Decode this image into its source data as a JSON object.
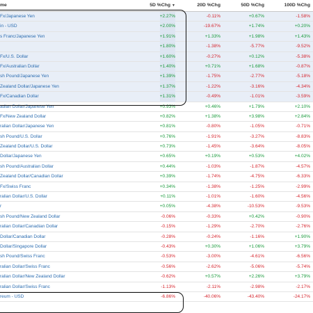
{
  "header": {
    "name": "me",
    "c5": "5D %Chg",
    "c20": "20D %Chg",
    "c50": "50D %Chg",
    "c100": "100D %Chg",
    "sort_icon": "▼"
  },
  "rows": [
    {
      "name": "Fx/Japanese Yen",
      "v5": "+2.27%",
      "v20": "-0.11%",
      "v50": "+0.67%",
      "v100": "-1.58%"
    },
    {
      "name": "in - USD",
      "v5": "+2.00%",
      "v20": "-19.67%",
      "v50": "+1.74%",
      "v100": "+0.20%"
    },
    {
      "name": "s Franc/Japanese Yen",
      "v5": "+1.91%",
      "v20": "+1.33%",
      "v50": "+1.98%",
      "v100": "+1.43%"
    },
    {
      "name": "",
      "v5": "+1.80%",
      "v20": "-1.38%",
      "v50": "-5.77%",
      "v100": "-9.52%"
    },
    {
      "name": "Fx/U.S. Dollar",
      "v5": "+1.60%",
      "v20": "-0.27%",
      "v50": "+0.12%",
      "v100": "-5.38%"
    },
    {
      "name": "Fx/Australian Dollar",
      "v5": "+1.40%",
      "v20": "+0.71%",
      "v50": "+1.68%",
      "v100": "-0.87%"
    },
    {
      "name": "sh Pound/Japanese Yen",
      "v5": "+1.39%",
      "v20": "-1.75%",
      "v50": "-2.77%",
      "v100": "-5.18%"
    },
    {
      "name": "Zealand Dollar/Japanese Yen",
      "v5": "+1.37%",
      "v20": "-1.22%",
      "v50": "-3.16%",
      "v100": "-4.34%"
    },
    {
      "name": "Fx/Canadian Dollar",
      "v5": "+1.31%",
      "v20": "-0.49%",
      "v50": "-1.01%",
      "v100": "-3.59%"
    },
    {
      "name": "adian Dollar/Japanese Yen",
      "v5": "+0.93%",
      "v20": "+0.46%",
      "v50": "+1.79%",
      "v100": "+2.10%"
    },
    {
      "name": "Fx/New Zealand Dollar",
      "v5": "+0.82%",
      "v20": "+1.38%",
      "v50": "+3.98%",
      "v100": "+2.84%"
    },
    {
      "name": "ralian Dollar/Japanese Yen",
      "v5": "+0.81%",
      "v20": "-0.80%",
      "v50": "-1.05%",
      "v100": "-0.71%"
    },
    {
      "name": "sh Pound/U.S. Dollar",
      "v5": "+0.76%",
      "v20": "-1.91%",
      "v50": "-3.27%",
      "v100": "-8.83%"
    },
    {
      "name": "Zealand Dollar/U.S. Dollar",
      "v5": "+0.73%",
      "v20": "-1.45%",
      "v50": "-3.64%",
      "v100": "-8.05%"
    },
    {
      "name": "Dollar/Japanese Yen",
      "v5": "+0.65%",
      "v20": "+0.19%",
      "v50": "+0.53%",
      "v100": "+4.02%"
    },
    {
      "name": "sh Pound/Australian Dollar",
      "v5": "+0.44%",
      "v20": "-1.03%",
      "v50": "-1.87%",
      "v100": "-4.57%"
    },
    {
      "name": "Zealand Dollar/Canadian Dollar",
      "v5": "+0.39%",
      "v20": "-1.74%",
      "v50": "-4.75%",
      "v100": "-6.33%"
    },
    {
      "name": "Fx/Swiss Franc",
      "v5": "+0.34%",
      "v20": "-1.38%",
      "v50": "-1.25%",
      "v100": "-2.99%"
    },
    {
      "name": "ralian Dollar/U.S. Dollar",
      "v5": "+0.11%",
      "v20": "-1.01%",
      "v50": "-1.60%",
      "v100": "-4.56%"
    },
    {
      "name": "r",
      "v5": "+0.05%",
      "v20": "-4.38%",
      "v50": "-10.53%",
      "v100": "-9.53%"
    },
    {
      "name": "sh Pound/New Zealand Dollar",
      "v5": "-0.06%",
      "v20": "-0.33%",
      "v50": "+0.42%",
      "v100": "-0.90%"
    },
    {
      "name": "ralian Dollar/Canadian Dollar",
      "v5": "-0.15%",
      "v20": "-1.29%",
      "v50": "-2.70%",
      "v100": "-2.76%"
    },
    {
      "name": "Dollar/Canadian Dollar",
      "v5": "-0.28%",
      "v20": "-0.24%",
      "v50": "-1.16%",
      "v100": "+1.90%"
    },
    {
      "name": "Dollar/Singapore Dollar",
      "v5": "-0.43%",
      "v20": "+0.30%",
      "v50": "+1.06%",
      "v100": "+3.79%"
    },
    {
      "name": "sh Pound/Swiss Franc",
      "v5": "-0.53%",
      "v20": "-3.00%",
      "v50": "-4.61%",
      "v100": "-6.56%"
    },
    {
      "name": "ralian Dollar/Swiss Franc",
      "v5": "-0.56%",
      "v20": "-2.62%",
      "v50": "-5.06%",
      "v100": "-5.74%"
    },
    {
      "name": "ralian Dollar/New Zealand Dollar",
      "v5": "-0.62%",
      "v20": "+0.57%",
      "v50": "+2.26%",
      "v100": "+3.79%"
    },
    {
      "name": "ralian Dollar/Swiss Franc",
      "v5": "-1.13%",
      "v20": "-2.11%",
      "v50": "-2.98%",
      "v100": "-2.17%"
    },
    {
      "name": "reum - USD",
      "v5": "-6.86%",
      "v20": "-40.06%",
      "v50": "-43.40%",
      "v100": "-24.17%"
    }
  ],
  "colors": {
    "positive": "#1a9b3c",
    "negative": "#d6252d",
    "link": "#2b6cb0"
  }
}
